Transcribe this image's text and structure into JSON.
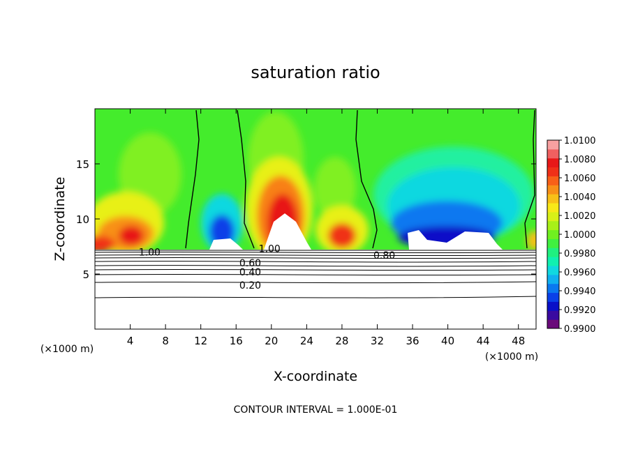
{
  "chart_data": {
    "type": "heatmap",
    "title": "saturation ratio",
    "xlabel": "X-coordinate",
    "ylabel": "Z-coordinate",
    "x_unit": "(×1000 m)",
    "x_unit_right": "(×1000 m)",
    "xlim": [
      0,
      50
    ],
    "ylim": [
      0,
      20
    ],
    "x_ticks": [
      4,
      8,
      12,
      16,
      20,
      24,
      28,
      32,
      36,
      40,
      44,
      48
    ],
    "y_ticks": [
      5,
      10,
      15
    ],
    "footer": "CONTOUR INTERVAL = 1.000E-01",
    "colorbar": {
      "min": 0.99,
      "max": 1.01,
      "labels": [
        "1.0100",
        "1.0080",
        "1.0060",
        "1.0040",
        "1.0020",
        "1.0000",
        "0.9980",
        "0.9960",
        "0.9940",
        "0.9920",
        "0.9900"
      ],
      "colors": [
        "#6a0a7a",
        "#3a0aa0",
        "#0a10c8",
        "#0a40e8",
        "#0a78f0",
        "#10b0f0",
        "#10d8e0",
        "#10f0b0",
        "#20f080",
        "#40f040",
        "#70f020",
        "#a8f018",
        "#d8f018",
        "#f8e818",
        "#f8c018",
        "#f89018",
        "#f86018",
        "#f03018",
        "#e81818",
        "#f06060",
        "#f8a0a0"
      ]
    },
    "contour_labels": [
      {
        "text": "1.00",
        "x": 6.2,
        "y": 7.0
      },
      {
        "text": "1.00",
        "x": 19.8,
        "y": 7.3
      },
      {
        "text": "0.80",
        "x": 32.8,
        "y": 6.7
      },
      {
        "text": "0.60",
        "x": 17.6,
        "y": 6.0
      },
      {
        "text": "0.40",
        "x": 17.6,
        "y": 5.2
      },
      {
        "text": "0.20",
        "x": 17.6,
        "y": 4.0
      }
    ]
  }
}
